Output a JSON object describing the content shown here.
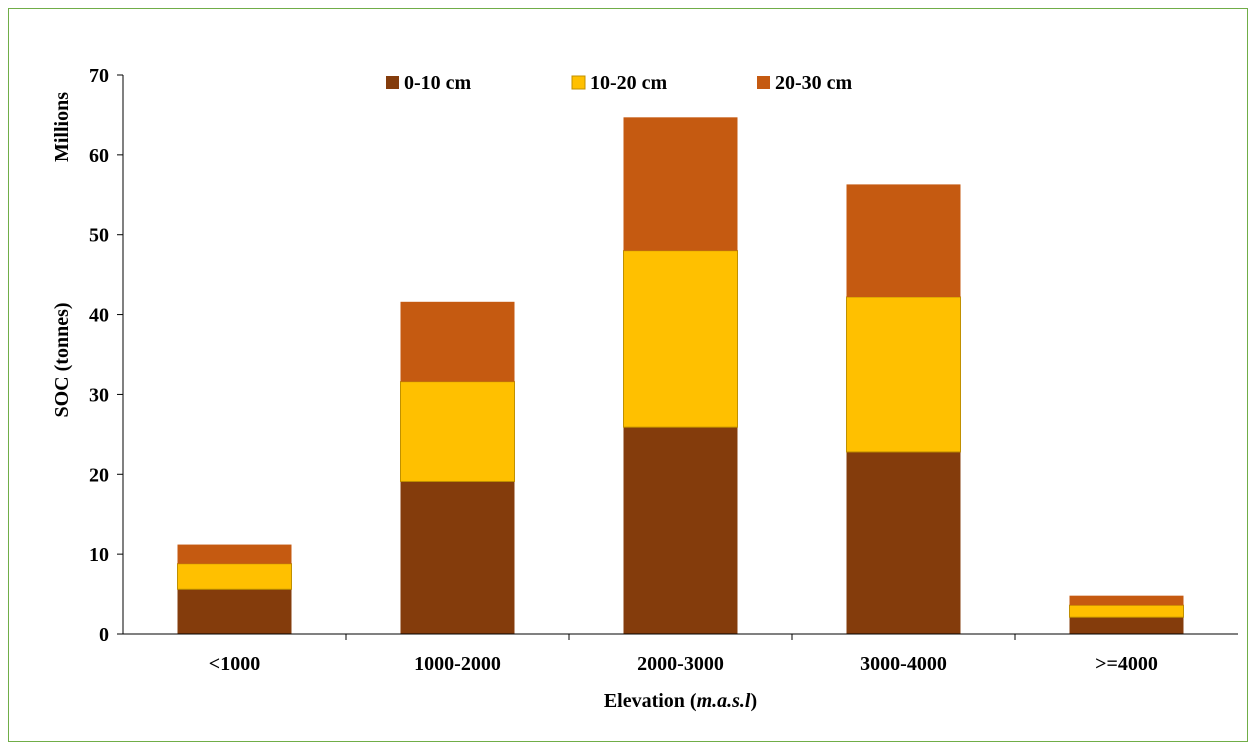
{
  "chart_data": {
    "type": "bar",
    "stacked": true,
    "title": "",
    "xlabel_prefix": "Elevation (",
    "xlabel_italic": "m.a.s.l",
    "xlabel_suffix": ")",
    "ylabel": "SOC (tonnes)",
    "y_unit_label": "Millions",
    "ylim": [
      0,
      70
    ],
    "yticks": [
      0,
      10,
      20,
      30,
      40,
      50,
      60,
      70
    ],
    "grid": false,
    "legend_position": "top-center",
    "categories": [
      "<1000",
      "1000-2000",
      "2000-3000",
      "3000-4000",
      ">=4000"
    ],
    "series": [
      {
        "name": "0-10 cm",
        "color": "#843c0c",
        "values": [
          5.6,
          19.1,
          25.9,
          22.8,
          2.1
        ]
      },
      {
        "name": "10-20 cm",
        "color": "#ffc000",
        "values": [
          3.2,
          12.5,
          22.1,
          19.4,
          1.5
        ]
      },
      {
        "name": "20-30 cm",
        "color": "#c55a11",
        "values": [
          2.4,
          10.0,
          16.7,
          14.1,
          1.2
        ]
      }
    ]
  }
}
